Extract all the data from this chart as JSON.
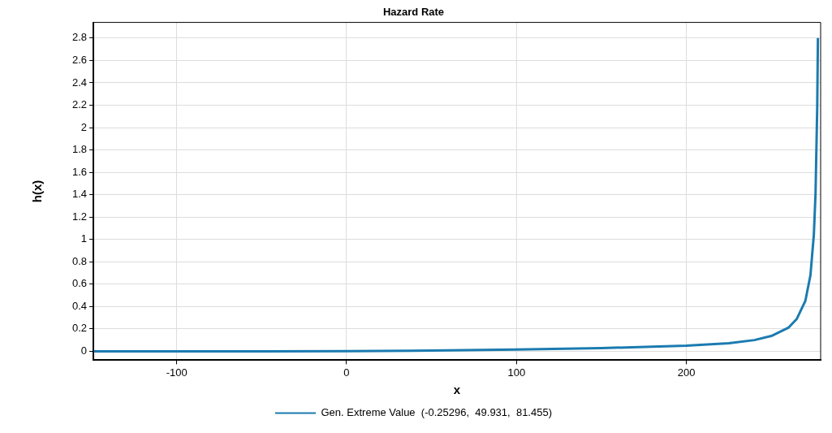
{
  "chart_data": {
    "type": "line",
    "title": "Hazard Rate",
    "xlabel": "x",
    "ylabel": "h(x)",
    "series": [
      {
        "name": "Gen. Extreme Value  (-0.25296,  49.931,  81.455)",
        "color": "#1b7bb0",
        "x": [
          -149,
          -100,
          -50,
          0,
          50,
          100,
          150,
          200,
          225,
          240,
          250,
          260,
          265,
          270,
          273,
          275,
          276,
          277,
          277.4
        ],
        "values": [
          0,
          0,
          0,
          0.001,
          0.006,
          0.016,
          0.028,
          0.05,
          0.072,
          0.1,
          0.137,
          0.21,
          0.29,
          0.45,
          0.68,
          1.04,
          1.41,
          2.19,
          2.8
        ]
      }
    ],
    "xlim": [
      -149,
      279
    ],
    "ylim": [
      -0.08,
      2.94
    ],
    "xticks": [
      -100,
      0,
      100,
      200
    ],
    "yticks": [
      0,
      0.2,
      0.4,
      0.6,
      0.8,
      1,
      1.2,
      1.4,
      1.6,
      1.8,
      2,
      2.2,
      2.4,
      2.6,
      2.8
    ],
    "grid": true,
    "legend": "bottom",
    "marker": "none",
    "line_style": "solid"
  }
}
